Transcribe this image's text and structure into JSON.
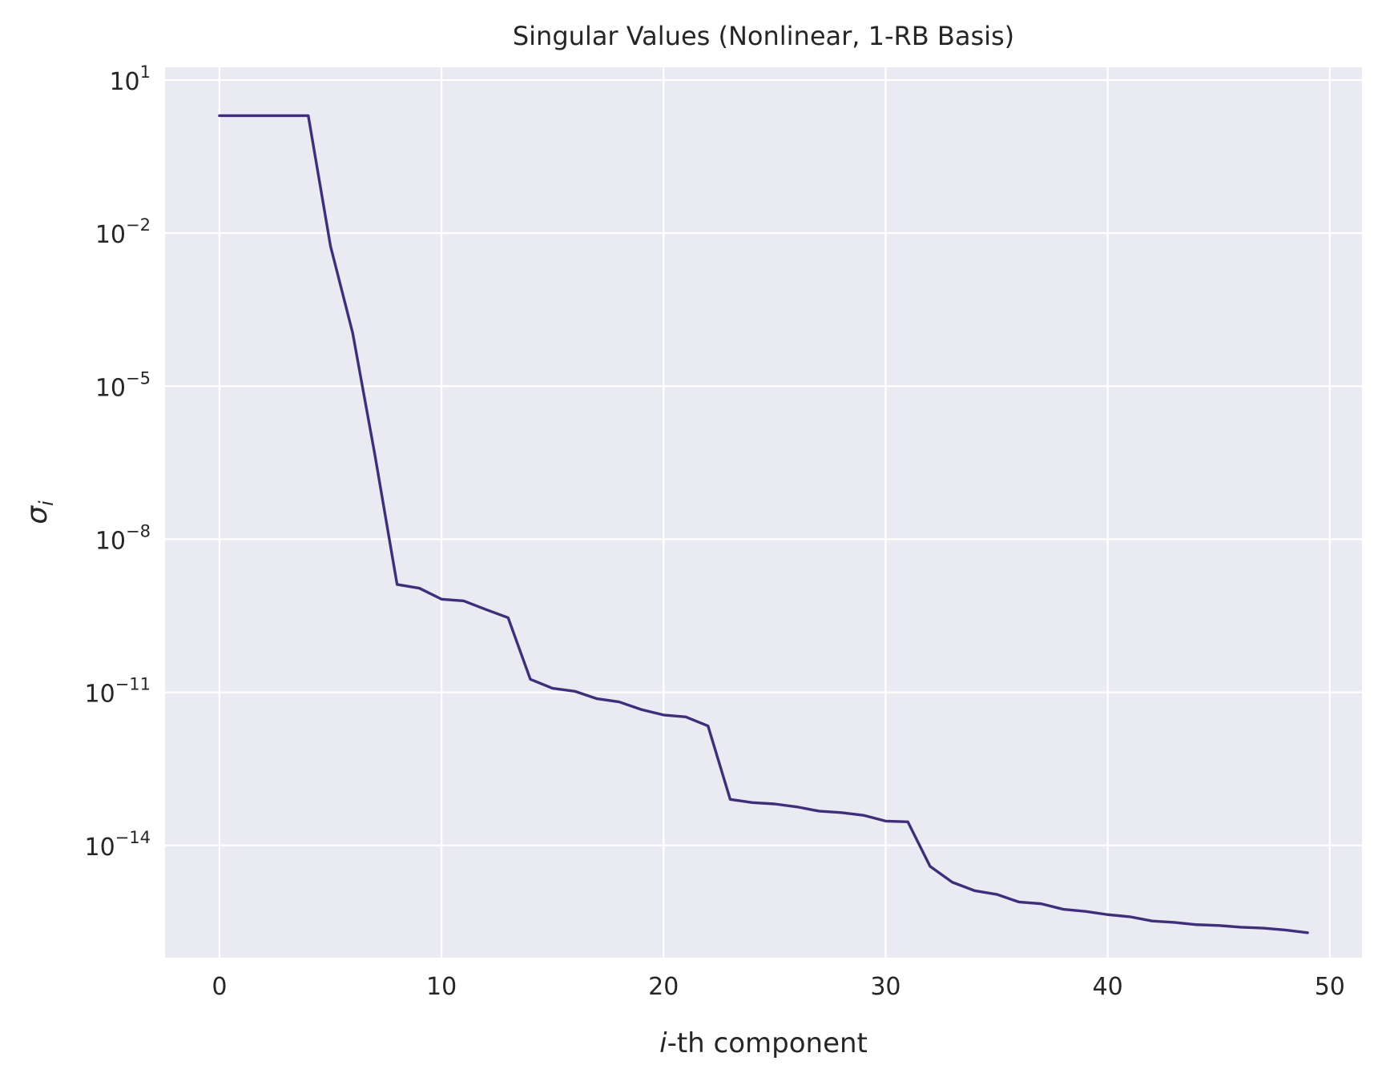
{
  "chart_data": {
    "type": "line",
    "title": "Singular Values (Nonlinear, 1-RB Basis)",
    "xlabel": "i-th component",
    "xlabel_italic": "i",
    "xlabel_rest": "-th component",
    "ylabel": "σi",
    "ylabel_base": "σ",
    "ylabel_sub": "i",
    "yscale": "log",
    "grid": true,
    "background": "#eaeaf2",
    "grid_color": "#ffffff",
    "line_color": "#3f2f7a",
    "xlim": [
      -2.45,
      51.45
    ],
    "ylim_exp": [
      -16.2,
      1.25
    ],
    "xticks": [
      0,
      10,
      20,
      30,
      40,
      50
    ],
    "xtick_labels": [
      "0",
      "10",
      "20",
      "30",
      "40",
      "50"
    ],
    "yticks_exp": [
      1,
      -2,
      -5,
      -8,
      -11,
      -14
    ],
    "ytick_base": "10",
    "ytick_exps": [
      "1",
      "−2",
      "−5",
      "−8",
      "−11",
      "−14"
    ],
    "series": [
      {
        "x": [
          0,
          1,
          2,
          3,
          4,
          5,
          6,
          7,
          8,
          9,
          10,
          11,
          12,
          13,
          14,
          15,
          16,
          17,
          18,
          19,
          20,
          21,
          22,
          23,
          24,
          25,
          26,
          27,
          28,
          29,
          30,
          31,
          32,
          33,
          34,
          35,
          36,
          37,
          38,
          39,
          40,
          41,
          42,
          43,
          44,
          45,
          46,
          47,
          48,
          49
        ],
        "y": [
          2.0,
          2.0,
          2.0,
          2.0,
          2.0,
          0.0056,
          0.00011,
          4.5e-07,
          1.3e-09,
          1.1e-09,
          6.7e-10,
          6.2e-10,
          4.2e-10,
          2.9e-10,
          1.8e-11,
          1.2e-11,
          1.05e-11,
          7.5e-12,
          6.5e-12,
          4.6e-12,
          3.6e-12,
          3.3e-12,
          2.2e-12,
          8e-14,
          6.9e-14,
          6.5e-14,
          5.7e-14,
          4.7e-14,
          4.4e-14,
          3.9e-14,
          3e-14,
          2.9e-14,
          3.9e-15,
          1.9e-15,
          1.3e-15,
          1.1e-15,
          7.8e-16,
          7.2e-16,
          5.6e-16,
          5.1e-16,
          4.4e-16,
          4e-16,
          3.3e-16,
          3.1e-16,
          2.8e-16,
          2.7e-16,
          2.5e-16,
          2.4e-16,
          2.2e-16,
          1.95e-16
        ]
      }
    ]
  }
}
